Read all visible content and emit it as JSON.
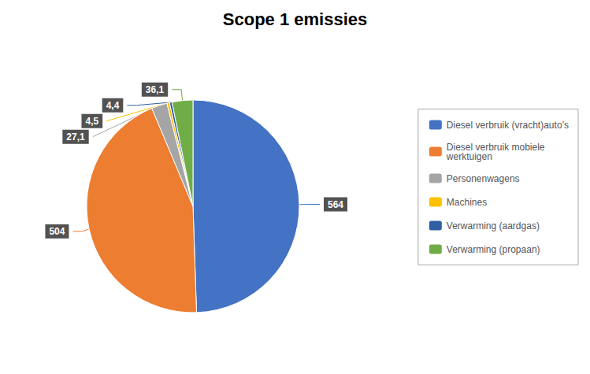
{
  "chart_data": {
    "type": "pie",
    "title": "Scope 1 emissies",
    "categories": [
      "Diesel verbruik (vracht)auto’s",
      "Diesel verbruik mobiele\nwerktuigen",
      "Personenwagens",
      "Machines",
      "Verwarming (aardgas)",
      "Verwarming (propaan)"
    ],
    "values": [
      564,
      504,
      27.1,
      4.5,
      4.4,
      36.1
    ],
    "value_labels": [
      "564",
      "504",
      "27,1",
      "4,5",
      "4,4",
      "36,1"
    ],
    "colors": [
      "#4472C4",
      "#ED7D31",
      "#A5A5A5",
      "#FFC000",
      "#2E5FA3",
      "#70AD47"
    ],
    "data_labels": true,
    "legend": "right"
  }
}
